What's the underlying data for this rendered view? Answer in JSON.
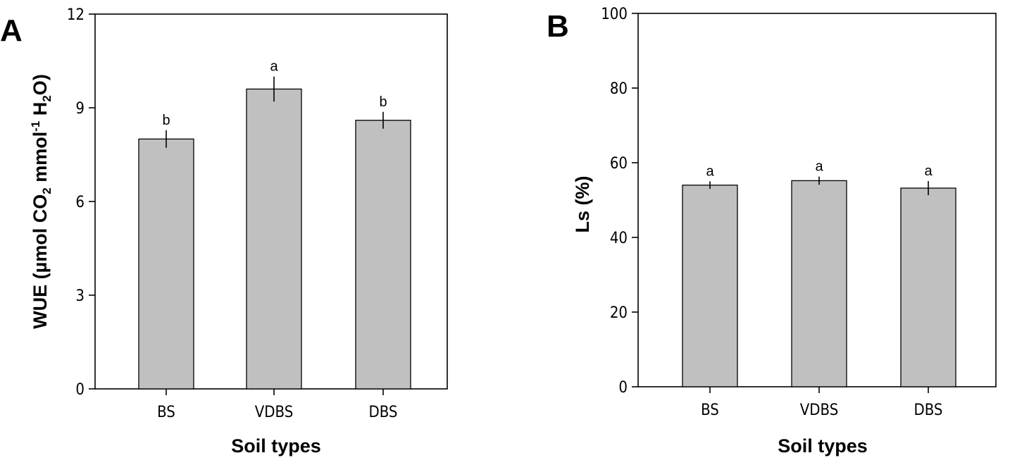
{
  "chart_data": [
    {
      "panel": "A",
      "type": "bar",
      "categories": [
        "BS",
        "VDBS",
        "DBS"
      ],
      "values": [
        8.0,
        9.6,
        8.6
      ],
      "errors": [
        0.28,
        0.4,
        0.27
      ],
      "significance": [
        "b",
        "a",
        "b"
      ],
      "xlabel": "Soil types",
      "ylabel_parts": [
        "WUE (µmol CO",
        "2",
        " mmol",
        "-1",
        " H",
        "2",
        "O)"
      ],
      "ylim": [
        0,
        12
      ],
      "yticks": [
        0,
        3,
        6,
        9,
        12
      ],
      "bar_color": "#c0c0c0"
    },
    {
      "panel": "B",
      "type": "bar",
      "categories": [
        "BS",
        "VDBS",
        "DBS"
      ],
      "values": [
        54,
        55.2,
        53.2
      ],
      "errors": [
        1.0,
        1.1,
        1.9
      ],
      "significance": [
        "a",
        "a",
        "a"
      ],
      "xlabel": "Soil types",
      "ylabel_parts": [
        "Ls (%)"
      ],
      "ylim": [
        0,
        100
      ],
      "yticks": [
        0,
        20,
        40,
        60,
        80,
        100
      ],
      "bar_color": "#c0c0c0"
    }
  ]
}
